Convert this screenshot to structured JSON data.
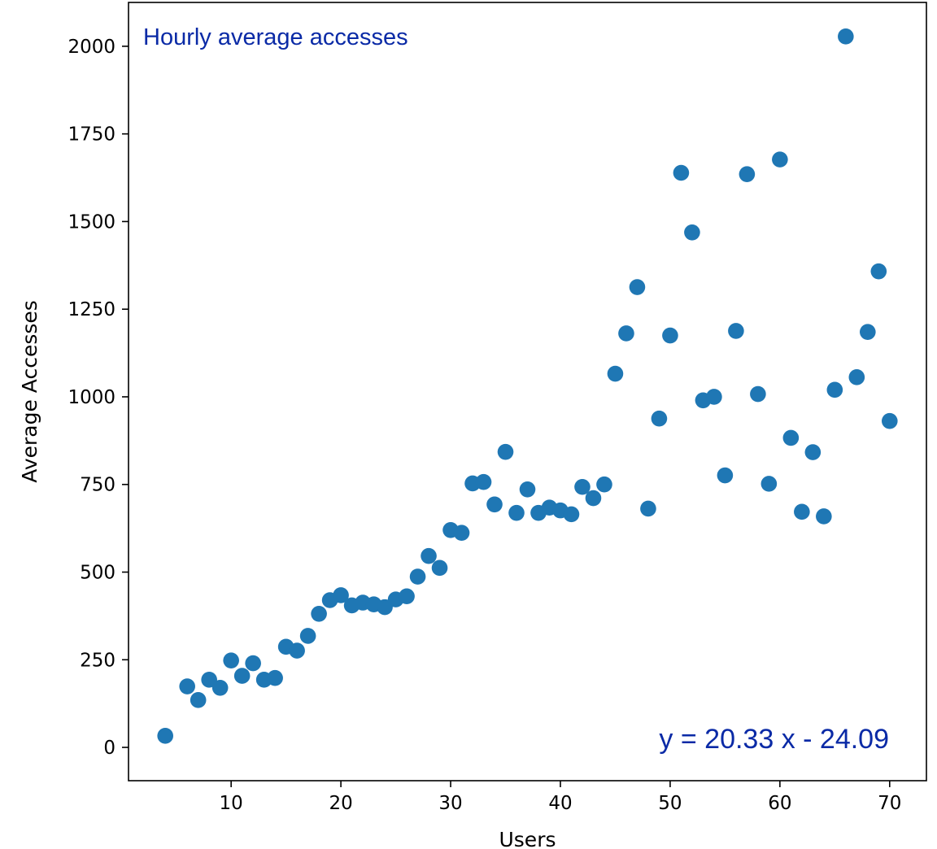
{
  "chart_data": {
    "type": "scatter",
    "title": "",
    "xlabel": "Users",
    "ylabel": "Average Accesses",
    "xlim": [
      0.65,
      73.35
    ],
    "ylim": [
      -95,
      2125
    ],
    "xticks": [
      10,
      20,
      30,
      40,
      50,
      60,
      70
    ],
    "yticks": [
      0,
      250,
      500,
      750,
      1000,
      1250,
      1500,
      1750,
      2000
    ],
    "grid": false,
    "point_color": "#1f77b4",
    "annotation_color": "#0a2aa6",
    "annotations": {
      "top_left": "Hourly average accesses",
      "bottom_right": "y = 20.33 x - 24.09"
    },
    "points": [
      [
        4,
        33
      ],
      [
        6,
        174
      ],
      [
        7,
        135
      ],
      [
        8,
        193
      ],
      [
        9,
        170
      ],
      [
        10,
        248
      ],
      [
        11,
        204
      ],
      [
        12,
        240
      ],
      [
        13,
        193
      ],
      [
        14,
        198
      ],
      [
        15,
        287
      ],
      [
        16,
        276
      ],
      [
        17,
        318
      ],
      [
        18,
        381
      ],
      [
        19,
        420
      ],
      [
        20,
        434
      ],
      [
        21,
        405
      ],
      [
        22,
        413
      ],
      [
        23,
        408
      ],
      [
        24,
        400
      ],
      [
        25,
        422
      ],
      [
        26,
        431
      ],
      [
        27,
        487
      ],
      [
        28,
        546
      ],
      [
        29,
        512
      ],
      [
        30,
        620
      ],
      [
        31,
        612
      ],
      [
        32,
        753
      ],
      [
        33,
        757
      ],
      [
        34,
        693
      ],
      [
        35,
        843
      ],
      [
        36,
        669
      ],
      [
        37,
        736
      ],
      [
        38,
        669
      ],
      [
        39,
        684
      ],
      [
        40,
        676
      ],
      [
        41,
        665
      ],
      [
        42,
        743
      ],
      [
        43,
        711
      ],
      [
        44,
        750
      ],
      [
        45,
        1066
      ],
      [
        46,
        1181
      ],
      [
        47,
        1313
      ],
      [
        48,
        681
      ],
      [
        49,
        938
      ],
      [
        50,
        1175
      ],
      [
        51,
        1639
      ],
      [
        52,
        1469
      ],
      [
        53,
        990
      ],
      [
        54,
        1000
      ],
      [
        55,
        776
      ],
      [
        56,
        1188
      ],
      [
        57,
        1635
      ],
      [
        58,
        1008
      ],
      [
        59,
        752
      ],
      [
        60,
        1677
      ],
      [
        61,
        883
      ],
      [
        62,
        672
      ],
      [
        63,
        842
      ],
      [
        64,
        659
      ],
      [
        65,
        1020
      ],
      [
        66,
        2028
      ],
      [
        67,
        1056
      ],
      [
        68,
        1185
      ],
      [
        69,
        1358
      ],
      [
        70,
        931
      ]
    ]
  }
}
